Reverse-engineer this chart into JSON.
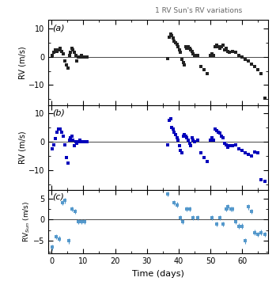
{
  "title": "1 RV Sun's RV variations",
  "xlabel": "Time (days)",
  "panel_labels": [
    "(a)",
    "(b)",
    "(c)"
  ],
  "panel_a_ylabel": "RV (m/s)",
  "panel_b_ylabel": "RV (m/s)",
  "panel_c_ylabel": "RV$_{Sun}$ (m/s)",
  "panel_a_ylim": [
    -17,
    13
  ],
  "panel_b_ylim": [
    -17,
    13
  ],
  "panel_c_ylim": [
    -8,
    7
  ],
  "xlim": [
    -1,
    68
  ],
  "xticks": [
    0,
    10,
    20,
    30,
    40,
    50,
    60
  ],
  "color_a": "#222222",
  "color_b": "#0000BB",
  "color_c": "#5599CC",
  "panel_a_x": [
    0.3,
    0.8,
    1.2,
    1.8,
    2.2,
    2.7,
    3.2,
    3.8,
    4.3,
    4.8,
    5.3,
    5.8,
    6.0,
    6.4,
    6.8,
    7.2,
    7.6,
    8.0,
    8.5,
    9.0,
    9.5,
    10.0,
    10.4,
    10.8,
    11.2,
    36.5,
    37.0,
    37.5,
    37.8,
    38.2,
    38.6,
    39.0,
    39.4,
    39.8,
    40.2,
    40.6,
    41.0,
    41.4,
    41.8,
    42.2,
    42.6,
    43.0,
    43.4,
    43.8,
    44.2,
    44.6,
    45.0,
    46.0,
    47.0,
    48.0,
    49.0,
    50.0,
    50.5,
    51.0,
    51.5,
    52.0,
    52.5,
    53.0,
    53.5,
    54.0,
    54.5,
    55.0,
    55.5,
    56.0,
    57.0,
    58.0,
    59.0,
    60.0,
    61.0,
    62.0,
    63.0,
    64.0,
    65.0,
    66.0,
    67.0
  ],
  "panel_a_y": [
    0.5,
    1.5,
    2.5,
    2.0,
    2.5,
    3.0,
    2.0,
    1.0,
    -1.5,
    -3.0,
    -4.0,
    0.5,
    1.5,
    3.0,
    2.5,
    1.5,
    0.5,
    -1.5,
    0.0,
    0.0,
    0.5,
    0.0,
    0.0,
    0.0,
    0.0,
    -0.5,
    7.0,
    8.0,
    7.5,
    6.5,
    5.5,
    5.0,
    4.5,
    3.5,
    2.5,
    1.5,
    -1.0,
    -2.0,
    -3.0,
    3.5,
    3.0,
    3.5,
    3.0,
    2.5,
    2.0,
    1.0,
    0.5,
    0.5,
    -3.5,
    -4.5,
    -6.0,
    0.5,
    1.0,
    0.5,
    3.5,
    4.0,
    3.5,
    3.0,
    3.5,
    4.0,
    2.5,
    3.0,
    2.0,
    1.5,
    2.0,
    1.5,
    0.5,
    0.0,
    -1.0,
    -1.5,
    -2.5,
    -3.5,
    -4.5,
    -6.0,
    -14.5
  ],
  "panel_b_x": [
    0.3,
    0.8,
    1.2,
    1.8,
    2.2,
    2.7,
    3.2,
    3.8,
    4.3,
    4.8,
    5.3,
    5.8,
    6.0,
    6.4,
    6.8,
    7.2,
    7.6,
    8.0,
    8.5,
    9.0,
    9.5,
    10.0,
    10.4,
    10.8,
    11.2,
    36.5,
    37.0,
    37.5,
    37.8,
    38.2,
    38.6,
    39.0,
    39.4,
    39.8,
    40.2,
    40.6,
    41.0,
    41.4,
    41.8,
    42.2,
    42.6,
    43.0,
    43.4,
    43.8,
    44.2,
    44.6,
    45.0,
    46.0,
    47.0,
    48.0,
    49.0,
    50.0,
    50.5,
    51.0,
    51.5,
    52.0,
    52.5,
    53.0,
    53.5,
    54.0,
    54.5,
    55.0,
    55.5,
    56.0,
    57.0,
    58.0,
    59.0,
    60.0,
    61.0,
    62.0,
    63.0,
    64.0,
    65.0,
    66.0,
    67.0
  ],
  "panel_b_y": [
    -2.5,
    -1.0,
    1.0,
    3.5,
    4.5,
    4.5,
    3.5,
    2.0,
    -1.0,
    -5.5,
    -7.5,
    0.5,
    1.5,
    2.0,
    0.5,
    -1.5,
    0.0,
    -0.5,
    0.0,
    0.5,
    0.0,
    0.0,
    0.0,
    0.0,
    0.0,
    -1.0,
    7.5,
    8.0,
    5.0,
    4.5,
    3.5,
    2.5,
    1.5,
    0.5,
    -1.5,
    -3.0,
    -4.0,
    2.0,
    2.5,
    2.0,
    1.5,
    0.5,
    -0.5,
    -1.5,
    1.5,
    0.5,
    0.0,
    0.5,
    -4.0,
    -5.5,
    -7.0,
    0.5,
    1.5,
    0.5,
    4.5,
    4.0,
    3.5,
    3.0,
    2.0,
    1.5,
    -0.5,
    -1.0,
    -2.0,
    -1.5,
    -1.5,
    -1.0,
    -2.5,
    -3.0,
    -4.0,
    -4.5,
    -5.0,
    -3.5,
    -4.0,
    -13.5,
    -14.0
  ],
  "panel_c_x": [
    0.3,
    1.5,
    2.5,
    3.5,
    4.3,
    5.5,
    6.5,
    7.5,
    8.5,
    9.5,
    10.5,
    36.5,
    38.5,
    39.5,
    40.5,
    41.2,
    42.5,
    43.5,
    44.5,
    46.0,
    50.5,
    52.0,
    53.0,
    54.0,
    55.0,
    55.5,
    56.5,
    57.0,
    58.0,
    59.0,
    60.0,
    61.0,
    62.0,
    63.0,
    64.0,
    65.0,
    66.0,
    67.0
  ],
  "panel_c_y": [
    -6.5,
    -4.0,
    -4.5,
    4.0,
    4.5,
    -5.0,
    2.5,
    2.0,
    -0.5,
    -0.5,
    -0.5,
    6.0,
    4.0,
    3.5,
    0.5,
    -0.5,
    2.5,
    2.5,
    0.5,
    0.5,
    0.5,
    -1.0,
    0.5,
    -1.0,
    2.5,
    3.0,
    2.5,
    2.5,
    -0.5,
    -1.5,
    -1.5,
    -5.0,
    3.0,
    2.0,
    -3.0,
    -3.5,
    -3.0,
    -3.5
  ],
  "panel_c_yerr": [
    0.7,
    0.6,
    0.7,
    0.6,
    0.6,
    0.7,
    0.6,
    0.6,
    0.6,
    0.6,
    0.6,
    0.6,
    0.6,
    0.6,
    0.6,
    0.6,
    0.6,
    0.6,
    0.6,
    0.6,
    0.6,
    0.6,
    0.6,
    0.6,
    0.6,
    0.6,
    0.6,
    0.6,
    0.6,
    0.6,
    0.6,
    0.7,
    0.6,
    0.6,
    0.6,
    0.6,
    0.6,
    0.6
  ]
}
